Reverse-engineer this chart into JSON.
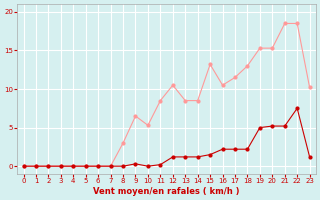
{
  "x": [
    0,
    1,
    2,
    3,
    4,
    5,
    6,
    7,
    8,
    9,
    10,
    11,
    12,
    13,
    14,
    15,
    16,
    17,
    18,
    19,
    20,
    21,
    22,
    23
  ],
  "y_mean": [
    0,
    0,
    0,
    0,
    0,
    0,
    0,
    0,
    0,
    0.3,
    0,
    0.2,
    1.2,
    1.2,
    1.2,
    1.5,
    2.2,
    2.2,
    2.2,
    5.0,
    5.2,
    5.2,
    7.5,
    1.2
  ],
  "y_gust": [
    0,
    0,
    0,
    0,
    0,
    0,
    0,
    0,
    3.0,
    6.5,
    5.3,
    8.5,
    10.5,
    8.5,
    8.5,
    13.2,
    10.5,
    11.5,
    13.0,
    15.3,
    15.3,
    18.5,
    18.5,
    10.2
  ],
  "xlabel": "Vent moyen/en rafales ( km/h )",
  "xlim_min": -0.5,
  "xlim_max": 23.5,
  "ylim_min": -1,
  "ylim_max": 21,
  "yticks": [
    0,
    5,
    10,
    15,
    20
  ],
  "xticks": [
    0,
    1,
    2,
    3,
    4,
    5,
    6,
    7,
    8,
    9,
    10,
    11,
    12,
    13,
    14,
    15,
    16,
    17,
    18,
    19,
    20,
    21,
    22,
    23
  ],
  "bg_color": "#d6f0f0",
  "grid_color": "#ffffff",
  "line_color_mean": "#cc0000",
  "line_color_gust": "#ff9999"
}
